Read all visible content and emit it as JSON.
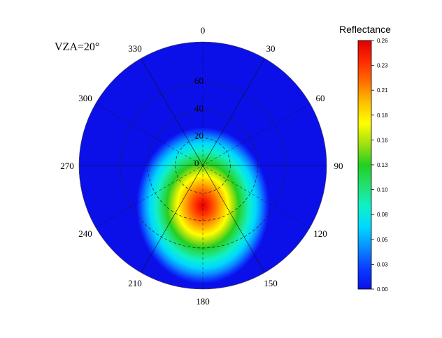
{
  "chart_data": {
    "type": "polar-contour",
    "annotation": "VZA=20°",
    "colorbar": {
      "title": "Reflectance",
      "tick_labels": [
        "0.00",
        "0.03",
        "0.05",
        "0.08",
        "0.10",
        "0.13",
        "0.16",
        "0.18",
        "0.21",
        "0.23",
        "0.26"
      ],
      "range": [
        0.0,
        0.26
      ],
      "colors": [
        "#0b10e8",
        "#0a3cff",
        "#0a8cff",
        "#00d8ff",
        "#10f0c8",
        "#22e070",
        "#22d022",
        "#a0e010",
        "#ffff00",
        "#ffc000",
        "#ff7000",
        "#ff2a00",
        "#e00000"
      ]
    },
    "angular_axis": {
      "direction": "clockwise",
      "zero_location": "top",
      "tick_labels": [
        "0",
        "30",
        "60",
        "90",
        "120",
        "150",
        "180",
        "210",
        "240",
        "270",
        "300",
        "330"
      ]
    },
    "radial_axis": {
      "tick_labels": [
        "0",
        "20",
        "40",
        "60"
      ],
      "range": [
        0,
        90
      ]
    },
    "hotspot": {
      "azimuth": 180,
      "zenith": 20,
      "peak_value": 0.26,
      "background_value": 0.0
    }
  }
}
